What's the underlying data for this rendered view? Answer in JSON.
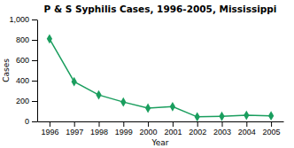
{
  "chart_data": {
    "type": "line",
    "title": "P & S Syphilis Cases, 1996-2005, Mississippi",
    "xlabel": "Year",
    "ylabel": "Cases",
    "x": [
      1996,
      1997,
      1998,
      1999,
      2000,
      2001,
      2002,
      2003,
      2004,
      2005
    ],
    "values": [
      810,
      390,
      260,
      190,
      130,
      145,
      45,
      50,
      60,
      55
    ],
    "xlim": [
      1995.5,
      2005.5
    ],
    "xticks": [
      1996,
      1997,
      1998,
      1999,
      2000,
      2001,
      2002,
      2003,
      2004,
      2005
    ],
    "ylim": [
      0,
      1000
    ],
    "yticks": [
      0,
      200,
      400,
      600,
      800,
      {
        "value": 1000,
        "label": "1,000"
      }
    ],
    "color": "#1a9e5e",
    "marker": "diamond"
  }
}
